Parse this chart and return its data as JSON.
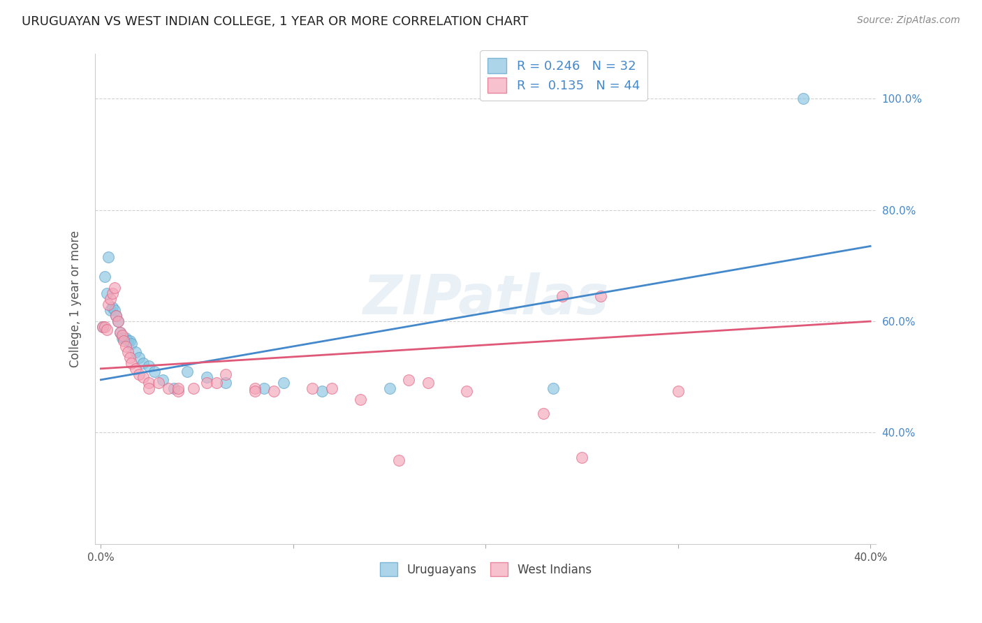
{
  "title": "URUGUAYAN VS WEST INDIAN COLLEGE, 1 YEAR OR MORE CORRELATION CHART",
  "source": "Source: ZipAtlas.com",
  "ylabel": "College, 1 year or more",
  "xlim": [
    -0.003,
    0.403
  ],
  "ylim": [
    0.2,
    1.08
  ],
  "yticks": [
    0.4,
    0.6,
    0.8,
    1.0
  ],
  "ytick_labels": [
    "40.0%",
    "60.0%",
    "80.0%",
    "100.0%"
  ],
  "xticks": [
    0.0,
    0.1,
    0.2,
    0.3,
    0.4
  ],
  "xtick_labels": [
    "0.0%",
    "",
    "",
    "",
    "40.0%"
  ],
  "background_color": "#ffffff",
  "grid_color": "#d0d0d0",
  "blue_color": "#89c4e1",
  "pink_color": "#f4a7b9",
  "blue_edge_color": "#5aa0c8",
  "pink_edge_color": "#e06080",
  "blue_line_color": "#4488cc",
  "pink_line_color": "#e05878",
  "tick_label_color": "#4488cc",
  "axis_label_color": "#555555",
  "title_color": "#222222",
  "source_color": "#888888",
  "watermark_color": "#c8daea",
  "blue_line_x0": 0.0,
  "blue_line_y0": 0.495,
  "blue_line_x1": 0.4,
  "blue_line_y1": 0.735,
  "pink_line_x0": 0.0,
  "pink_line_y0": 0.515,
  "pink_line_x1": 0.4,
  "pink_line_y1": 0.6,
  "uruguayan_x": [
    0.001,
    0.002,
    0.003,
    0.004,
    0.005,
    0.006,
    0.007,
    0.008,
    0.009,
    0.01,
    0.011,
    0.012,
    0.013,
    0.014,
    0.015,
    0.016,
    0.018,
    0.02,
    0.022,
    0.025,
    0.028,
    0.032,
    0.038,
    0.045,
    0.055,
    0.065,
    0.085,
    0.095,
    0.115,
    0.15,
    0.235,
    0.365
  ],
  "uruguayan_y": [
    0.59,
    0.68,
    0.65,
    0.715,
    0.62,
    0.625,
    0.62,
    0.61,
    0.6,
    0.58,
    0.57,
    0.57,
    0.57,
    0.565,
    0.565,
    0.56,
    0.545,
    0.535,
    0.525,
    0.52,
    0.51,
    0.495,
    0.48,
    0.51,
    0.5,
    0.49,
    0.48,
    0.49,
    0.475,
    0.48,
    0.48,
    1.0
  ],
  "westindian_x": [
    0.001,
    0.002,
    0.003,
    0.004,
    0.005,
    0.006,
    0.007,
    0.008,
    0.009,
    0.01,
    0.011,
    0.012,
    0.013,
    0.014,
    0.015,
    0.016,
    0.018,
    0.02,
    0.022,
    0.025,
    0.03,
    0.035,
    0.04,
    0.048,
    0.055,
    0.065,
    0.08,
    0.09,
    0.11,
    0.12,
    0.135,
    0.155,
    0.17,
    0.19,
    0.24,
    0.26,
    0.025,
    0.04,
    0.06,
    0.08,
    0.16,
    0.23,
    0.25,
    0.3
  ],
  "westindian_y": [
    0.59,
    0.59,
    0.585,
    0.63,
    0.64,
    0.65,
    0.66,
    0.61,
    0.6,
    0.58,
    0.575,
    0.565,
    0.555,
    0.545,
    0.535,
    0.525,
    0.515,
    0.505,
    0.5,
    0.49,
    0.49,
    0.48,
    0.475,
    0.48,
    0.49,
    0.505,
    0.48,
    0.475,
    0.48,
    0.48,
    0.46,
    0.35,
    0.49,
    0.475,
    0.645,
    0.645,
    0.48,
    0.48,
    0.49,
    0.475,
    0.495,
    0.435,
    0.355,
    0.475
  ]
}
